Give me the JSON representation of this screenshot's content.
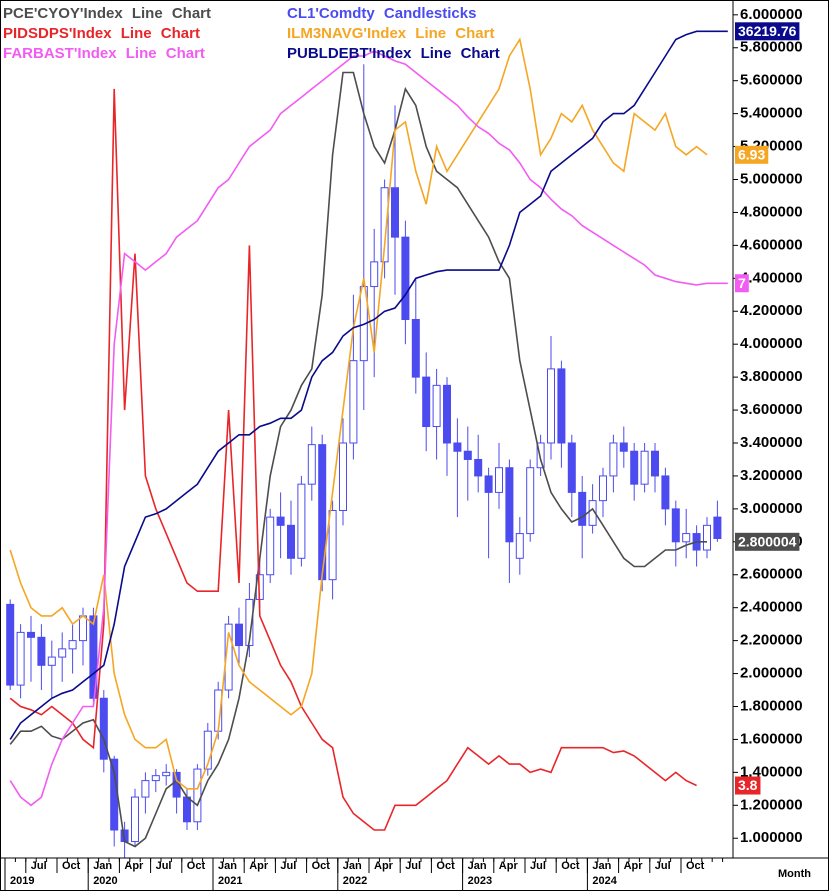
{
  "chart_data": {
    "type": "combo",
    "x": [
      "May 2019",
      "Jun 2019",
      "Jul 2019",
      "Aug 2019",
      "Sep 2019",
      "Oct 2019",
      "Nov 2019",
      "Dec 2019",
      "Jan 2020",
      "Feb 2020",
      "Mar 2020",
      "Apr 2020",
      "May 2020",
      "Jun 2020",
      "Jul 2020",
      "Aug 2020",
      "Sep 2020",
      "Oct 2020",
      "Nov 2020",
      "Dec 2020",
      "Jan 2021",
      "Feb 2021",
      "Mar 2021",
      "Apr 2021",
      "May 2021",
      "Jun 2021",
      "Jul 2021",
      "Aug 2021",
      "Sep 2021",
      "Oct 2021",
      "Nov 2021",
      "Dec 2021",
      "Jan 2022",
      "Feb 2022",
      "Mar 2022",
      "Apr 2022",
      "May 2022",
      "Jun 2022",
      "Jul 2022",
      "Aug 2022",
      "Sep 2022",
      "Oct 2022",
      "Nov 2022",
      "Dec 2022",
      "Jan 2023",
      "Feb 2023",
      "Mar 2023",
      "Apr 2023",
      "May 2023",
      "Jun 2023",
      "Jul 2023",
      "Aug 2023",
      "Sep 2023",
      "Oct 2023",
      "Nov 2023",
      "Dec 2023",
      "Jan 2024",
      "Feb 2024",
      "Mar 2024",
      "Apr 2024",
      "May 2024",
      "Jun 2024",
      "Jul 2024",
      "Aug 2024",
      "Sep 2024",
      "Oct 2024",
      "Nov 2024",
      "Dec 2024",
      "Jan 2025",
      "Feb 2025"
    ],
    "xticks": [
      {
        "value": "Jul 2019",
        "label": "Jul"
      },
      {
        "value": "Oct 2019",
        "label": "Oct"
      },
      {
        "value": "Jan 2020",
        "label": "Jan"
      },
      {
        "value": "Apr 2020",
        "label": "Apr"
      },
      {
        "value": "Jul 2020",
        "label": "Jul"
      },
      {
        "value": "Oct 2020",
        "label": "Oct"
      },
      {
        "value": "Jan 2021",
        "label": "Jan"
      },
      {
        "value": "Apr 2021",
        "label": "Apr"
      },
      {
        "value": "Jul 2021",
        "label": "Jul"
      },
      {
        "value": "Oct 2021",
        "label": "Oct"
      },
      {
        "value": "Jan 2022",
        "label": "Jan"
      },
      {
        "value": "Apr 2022",
        "label": "Apr"
      },
      {
        "value": "Jul 2022",
        "label": "Jul"
      },
      {
        "value": "Oct 2022",
        "label": "Oct"
      },
      {
        "value": "Jan 2023",
        "label": "Jan"
      },
      {
        "value": "Apr 2023",
        "label": "Apr"
      },
      {
        "value": "Jul 2023",
        "label": "Jul"
      },
      {
        "value": "Oct 2023",
        "label": "Oct"
      },
      {
        "value": "Jan 2024",
        "label": "Jan"
      },
      {
        "value": "Apr 2024",
        "label": "Apr"
      },
      {
        "value": "Jul 2024",
        "label": "Jul"
      },
      {
        "value": "Oct 2024",
        "label": "Oct"
      }
    ],
    "year_ticks": [
      {
        "value": "May 2019",
        "label": "2019"
      },
      {
        "value": "Jan 2020",
        "label": "2020"
      },
      {
        "value": "Jan 2021",
        "label": "2021"
      },
      {
        "value": "Jan 2022",
        "label": "2022"
      },
      {
        "value": "Jan 2023",
        "label": "2023"
      },
      {
        "value": "Jan 2024",
        "label": "2024"
      }
    ],
    "x_label": "Month",
    "ylim": [
      0.88,
      6.09
    ],
    "yticks": [
      {
        "value": 6,
        "label": "6.000000"
      },
      {
        "value": 5.8,
        "label": "5.800000"
      },
      {
        "value": 5.6,
        "label": "5.600000"
      },
      {
        "value": 5.4,
        "label": "5.400000"
      },
      {
        "value": 5.2,
        "label": "5.200000"
      },
      {
        "value": 5,
        "label": "5.000000"
      },
      {
        "value": 4.8,
        "label": "4.800000"
      },
      {
        "value": 4.6,
        "label": "4.600000"
      },
      {
        "value": 4.4,
        "label": "4.400000"
      },
      {
        "value": 4.2,
        "label": "4.200000"
      },
      {
        "value": 4,
        "label": "4.000000"
      },
      {
        "value": 3.8,
        "label": "3.800000"
      },
      {
        "value": 3.6,
        "label": "3.600000"
      },
      {
        "value": 3.4,
        "label": "3.400000"
      },
      {
        "value": 3.2,
        "label": "3.200000"
      },
      {
        "value": 3,
        "label": "3.000000"
      },
      {
        "value": 2.8,
        "label": "2.800000"
      },
      {
        "value": 2.6,
        "label": "2.600000"
      },
      {
        "value": 2.4,
        "label": "2.400000"
      },
      {
        "value": 2.2,
        "label": "2.200000"
      },
      {
        "value": 2,
        "label": "2.000000"
      },
      {
        "value": 1.8,
        "label": "1.800000"
      },
      {
        "value": 1.6,
        "label": "1.600000"
      },
      {
        "value": 1.4,
        "label": "1.400000"
      },
      {
        "value": 1.2,
        "label": "1.200000"
      },
      {
        "value": 1,
        "label": "1.000000"
      }
    ],
    "grid": false,
    "series": [
      {
        "name": "PCE'CYOY'Index Line Chart",
        "type": "line",
        "color": "#4d4d4d",
        "end_label": "2.800004",
        "values": [
          1.57,
          1.65,
          1.65,
          1.68,
          1.62,
          1.6,
          1.65,
          1.7,
          1.72,
          1.6,
          1.4,
          0.98,
          0.95,
          1.0,
          1.15,
          1.3,
          1.35,
          1.25,
          1.2,
          1.35,
          1.45,
          1.6,
          1.85,
          2.2,
          2.7,
          3.2,
          3.5,
          3.6,
          3.75,
          3.85,
          4.3,
          5.15,
          5.65,
          5.65,
          5.4,
          5.2,
          5.1,
          5.3,
          5.55,
          5.45,
          5.2,
          5.05,
          5.0,
          4.95,
          4.85,
          4.75,
          4.65,
          4.5,
          4.4,
          3.9,
          3.6,
          3.3,
          3.1,
          3.0,
          2.92,
          2.95,
          3.0,
          2.9,
          2.8,
          2.7,
          2.65,
          2.65,
          2.7,
          2.75,
          2.75,
          2.78,
          2.8,
          2.8,
          null,
          null
        ]
      },
      {
        "name": "CL1'Comdty Candlesticks",
        "type": "candlestick",
        "color": "#4b4bef",
        "open": [
          2.42,
          1.93,
          2.25,
          2.22,
          2.05,
          2.1,
          2.15,
          2.2,
          2.35,
          1.85,
          1.48,
          1.05,
          0.98,
          1.25,
          1.35,
          1.38,
          1.4,
          1.25,
          1.1,
          1.42,
          1.65,
          1.9,
          2.3,
          2.17,
          2.45,
          2.6,
          2.95,
          2.9,
          2.7,
          3.15,
          3.39,
          2.57,
          2.99,
          3.4,
          3.9,
          4.35,
          4.5,
          4.95,
          4.65,
          4.15,
          3.8,
          3.5,
          3.75,
          3.4,
          3.35,
          3.3,
          3.2,
          3.1,
          3.25,
          2.7,
          2.85,
          3.25,
          3.4,
          3.85,
          3.4,
          3.1,
          2.9,
          3.05,
          3.2,
          3.4,
          3.35,
          3.15,
          3.35,
          3.2,
          3.0,
          2.8,
          2.85,
          2.75,
          2.95,
          null
        ],
        "high": [
          2.45,
          2.3,
          2.35,
          2.3,
          2.2,
          2.25,
          2.3,
          2.4,
          2.4,
          1.9,
          1.5,
          1.1,
          1.3,
          1.4,
          1.42,
          1.45,
          1.42,
          1.3,
          1.45,
          1.7,
          1.95,
          2.35,
          2.4,
          2.55,
          2.7,
          3.0,
          3.1,
          3.05,
          3.2,
          3.5,
          3.45,
          3.05,
          3.55,
          4.3,
          5.7,
          4.7,
          5.0,
          5.45,
          4.75,
          4.4,
          3.95,
          3.85,
          3.8,
          3.55,
          3.5,
          3.45,
          3.25,
          3.4,
          3.3,
          2.95,
          3.3,
          3.45,
          4.05,
          3.9,
          3.45,
          3.2,
          3.15,
          3.25,
          3.45,
          3.5,
          3.4,
          3.4,
          3.4,
          3.25,
          3.05,
          3.0,
          2.9,
          2.95,
          3.05,
          null
        ],
        "low": [
          1.9,
          1.85,
          1.95,
          1.9,
          1.85,
          1.95,
          2.0,
          2.05,
          1.8,
          1.4,
          0.95,
          0.88,
          0.95,
          1.15,
          1.28,
          1.32,
          1.15,
          1.05,
          1.05,
          1.38,
          1.6,
          1.85,
          2.05,
          2.1,
          2.4,
          2.55,
          2.7,
          2.6,
          2.65,
          3.05,
          2.5,
          2.45,
          2.9,
          3.3,
          3.6,
          3.8,
          4.4,
          4.3,
          4.0,
          3.7,
          3.35,
          3.3,
          3.2,
          2.95,
          3.05,
          3.1,
          2.7,
          3.0,
          2.55,
          2.6,
          2.8,
          3.2,
          3.3,
          3.25,
          2.95,
          2.7,
          2.85,
          2.95,
          3.1,
          3.25,
          3.05,
          3.1,
          3.1,
          2.9,
          2.65,
          2.7,
          2.65,
          2.7,
          2.8,
          null
        ],
        "close": [
          1.93,
          2.25,
          2.22,
          2.05,
          2.1,
          2.15,
          2.2,
          2.35,
          1.85,
          1.48,
          1.05,
          0.98,
          1.25,
          1.35,
          1.38,
          1.4,
          1.25,
          1.1,
          1.42,
          1.65,
          1.9,
          2.3,
          2.17,
          2.45,
          2.6,
          2.95,
          2.9,
          2.7,
          3.15,
          3.39,
          2.57,
          2.99,
          3.4,
          3.9,
          4.35,
          4.5,
          4.95,
          4.65,
          4.15,
          3.8,
          3.5,
          3.75,
          3.4,
          3.35,
          3.3,
          3.2,
          3.1,
          3.25,
          2.8,
          2.85,
          3.25,
          3.4,
          3.85,
          3.4,
          3.1,
          2.9,
          3.05,
          3.2,
          3.4,
          3.35,
          3.15,
          3.35,
          3.2,
          3.0,
          2.8,
          2.85,
          2.75,
          2.9,
          2.82,
          null
        ]
      },
      {
        "name": "PIDSDPS'Index Line Chart",
        "type": "line",
        "color": "#e8262a",
        "end_label": "3.8",
        "values": [
          1.85,
          1.8,
          1.78,
          1.75,
          1.8,
          1.75,
          1.7,
          1.6,
          1.55,
          2.3,
          5.55,
          3.6,
          4.55,
          3.2,
          3.0,
          2.85,
          2.7,
          2.55,
          2.5,
          2.5,
          2.5,
          3.6,
          2.55,
          4.6,
          2.35,
          2.2,
          2.05,
          1.95,
          1.8,
          1.7,
          1.6,
          1.55,
          1.25,
          1.15,
          1.1,
          1.05,
          1.05,
          1.2,
          1.2,
          1.2,
          1.25,
          1.3,
          1.35,
          1.45,
          1.55,
          1.5,
          1.45,
          1.5,
          1.45,
          1.45,
          1.4,
          1.42,
          1.4,
          1.55,
          1.55,
          1.55,
          1.55,
          1.55,
          1.52,
          1.53,
          1.5,
          1.45,
          1.4,
          1.35,
          1.4,
          1.35,
          1.32,
          null,
          null,
          null
        ]
      },
      {
        "name": "ILM3NAVG'Index Line Chart",
        "type": "line",
        "color": "#f5a623",
        "end_label": "6.93",
        "values": [
          2.75,
          2.55,
          2.4,
          2.35,
          2.35,
          2.4,
          2.3,
          2.35,
          2.3,
          2.6,
          2.0,
          1.75,
          1.6,
          1.55,
          1.55,
          1.6,
          1.35,
          1.3,
          1.3,
          1.45,
          1.65,
          2.25,
          2.05,
          1.95,
          1.9,
          1.85,
          1.8,
          1.75,
          1.8,
          2.0,
          2.6,
          3.1,
          3.6,
          4.1,
          4.4,
          3.95,
          4.6,
          5.3,
          5.35,
          5.05,
          4.85,
          5.2,
          5.05,
          5.15,
          5.25,
          5.35,
          5.45,
          5.55,
          5.75,
          5.85,
          5.55,
          5.15,
          5.25,
          5.4,
          5.35,
          5.45,
          5.3,
          5.2,
          5.1,
          5.05,
          5.4,
          5.35,
          5.3,
          5.4,
          5.2,
          5.15,
          5.2,
          5.15,
          null,
          null
        ]
      },
      {
        "name": "FARBAST'Index Line Chart",
        "type": "line",
        "color": "#f25cf2",
        "end_label": "7",
        "values": [
          1.35,
          1.25,
          1.2,
          1.25,
          1.45,
          1.6,
          1.7,
          1.8,
          1.8,
          2.4,
          4.0,
          4.55,
          4.5,
          4.45,
          4.5,
          4.55,
          4.65,
          4.7,
          4.75,
          4.85,
          4.95,
          5.0,
          5.1,
          5.2,
          5.25,
          5.3,
          5.4,
          5.45,
          5.5,
          5.55,
          5.6,
          5.65,
          5.7,
          5.75,
          5.75,
          5.78,
          5.75,
          5.72,
          5.7,
          5.65,
          5.6,
          5.55,
          5.5,
          5.45,
          5.38,
          5.32,
          5.28,
          5.22,
          5.18,
          5.1,
          5.0,
          4.95,
          4.88,
          4.82,
          4.78,
          4.72,
          4.68,
          4.64,
          4.6,
          4.56,
          4.52,
          4.48,
          4.42,
          4.4,
          4.38,
          4.37,
          4.36,
          4.37,
          4.37,
          4.37
        ]
      },
      {
        "name": "PUBLDEBT'Index Line Chart",
        "type": "line",
        "color": "#0a0a8c",
        "end_label": "36219.76",
        "values": [
          1.6,
          1.7,
          1.75,
          1.8,
          1.85,
          1.88,
          1.9,
          1.95,
          2.0,
          2.05,
          2.3,
          2.65,
          2.8,
          2.95,
          2.97,
          3.0,
          3.05,
          3.1,
          3.15,
          3.25,
          3.35,
          3.4,
          3.45,
          3.45,
          3.5,
          3.52,
          3.55,
          3.55,
          3.6,
          3.8,
          3.9,
          3.95,
          4.05,
          4.1,
          4.12,
          4.15,
          4.2,
          4.22,
          4.3,
          4.4,
          4.42,
          4.44,
          4.45,
          4.45,
          4.45,
          4.45,
          4.45,
          4.45,
          4.6,
          4.8,
          4.85,
          4.9,
          5.05,
          5.1,
          5.15,
          5.2,
          5.25,
          5.35,
          5.4,
          5.4,
          5.45,
          5.55,
          5.65,
          5.75,
          5.85,
          5.88,
          5.9,
          5.9,
          5.9,
          5.9
        ]
      }
    ]
  }
}
